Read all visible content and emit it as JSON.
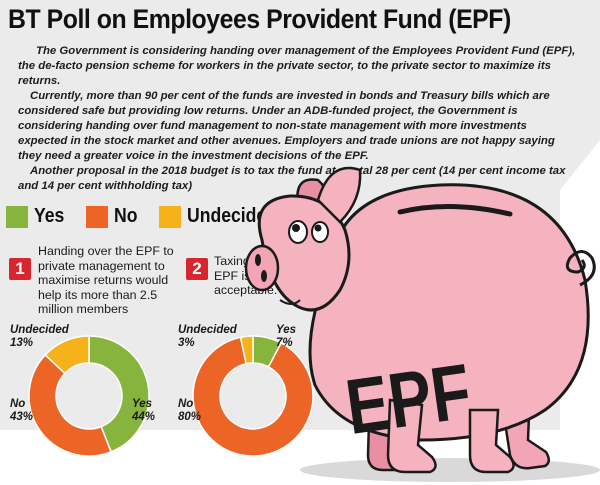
{
  "title": "BT Poll on Employees Provident Fund (EPF)",
  "intro": [
    "The Government is considering handing over management of the Employees Provident Fund (EPF), the de-facto pension scheme for workers in the private sector, to the private sector to maximize its returns.",
    "Currently, more than 90 per cent of the funds are invested in bonds and Treasury bills which are considered safe but providing low returns. Under an ADB-funded project, the Government is considering handing over fund management to non-state management with more investments expected in the stock market and other avenues. Employers and trade unions are not happy saying they need a greater voice in the investment decisions of the EPF.",
    "Another proposal in the 2018 budget is to tax the fund at a total 28 per cent (14 per cent income tax and 14 per cent withholding tax)"
  ],
  "legend": [
    {
      "label": "Yes",
      "color": "#86b43c"
    },
    {
      "label": "No",
      "color": "#ec6527"
    },
    {
      "label": "Undecided",
      "color": "#f6b21b"
    }
  ],
  "pig_label": "EPF",
  "chart_data": [
    {
      "type": "pie",
      "number": "1",
      "question": "Handing over the EPF to private management to maximise returns would help its more than 2.5 million members",
      "categories": [
        "Yes",
        "No",
        "Undecided"
      ],
      "values": [
        44,
        43,
        13
      ],
      "value_labels": [
        "44%",
        "43%",
        "13%"
      ],
      "colors": [
        "#86b43c",
        "#ec6527",
        "#f6b21b"
      ]
    },
    {
      "type": "pie",
      "number": "2",
      "question": "Taxing the EPF is acceptable.",
      "categories": [
        "Yes",
        "No",
        "Undecided"
      ],
      "values": [
        7,
        80,
        3
      ],
      "value_labels": [
        "7%",
        "80%",
        "3%"
      ],
      "colors": [
        "#86b43c",
        "#ec6527",
        "#f6b21b"
      ]
    }
  ]
}
